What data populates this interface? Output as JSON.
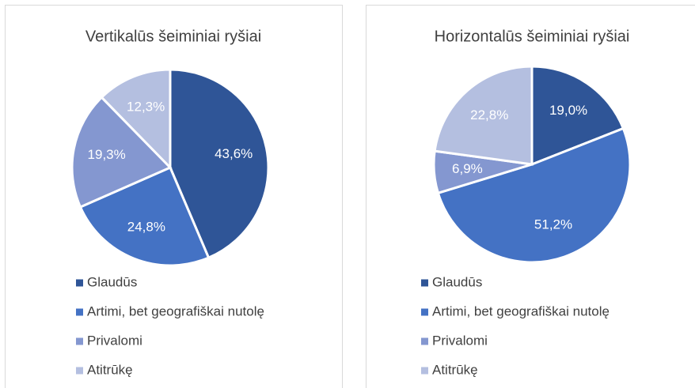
{
  "chart_data": [
    {
      "type": "pie",
      "title": "Vertikalūs šeiminiai ryšiai",
      "categories": [
        "Glaudūs",
        "Artimi, bet geografiškai nutolę",
        "Privalomi",
        "Atitrūkę"
      ],
      "values": [
        43.6,
        24.8,
        19.3,
        12.3
      ],
      "value_labels": [
        "43,6%",
        "24,8%",
        "19,3%",
        "12,3%"
      ],
      "colors": [
        "#2f5597",
        "#4472c4",
        "#8497d0",
        "#b4bfe0"
      ]
    },
    {
      "type": "pie",
      "title": "Horizontalūs šeiminiai ryšiai",
      "categories": [
        "Glaudūs",
        "Artimi, bet geografiškai nutolę",
        "Privalomi",
        "Atitrūkę"
      ],
      "values": [
        19.0,
        51.2,
        6.9,
        22.8
      ],
      "value_labels": [
        "19,0%",
        "51,2%",
        "6,9%",
        "22,8%"
      ],
      "colors": [
        "#2f5597",
        "#4472c4",
        "#8497d0",
        "#b4bfe0"
      ]
    }
  ]
}
